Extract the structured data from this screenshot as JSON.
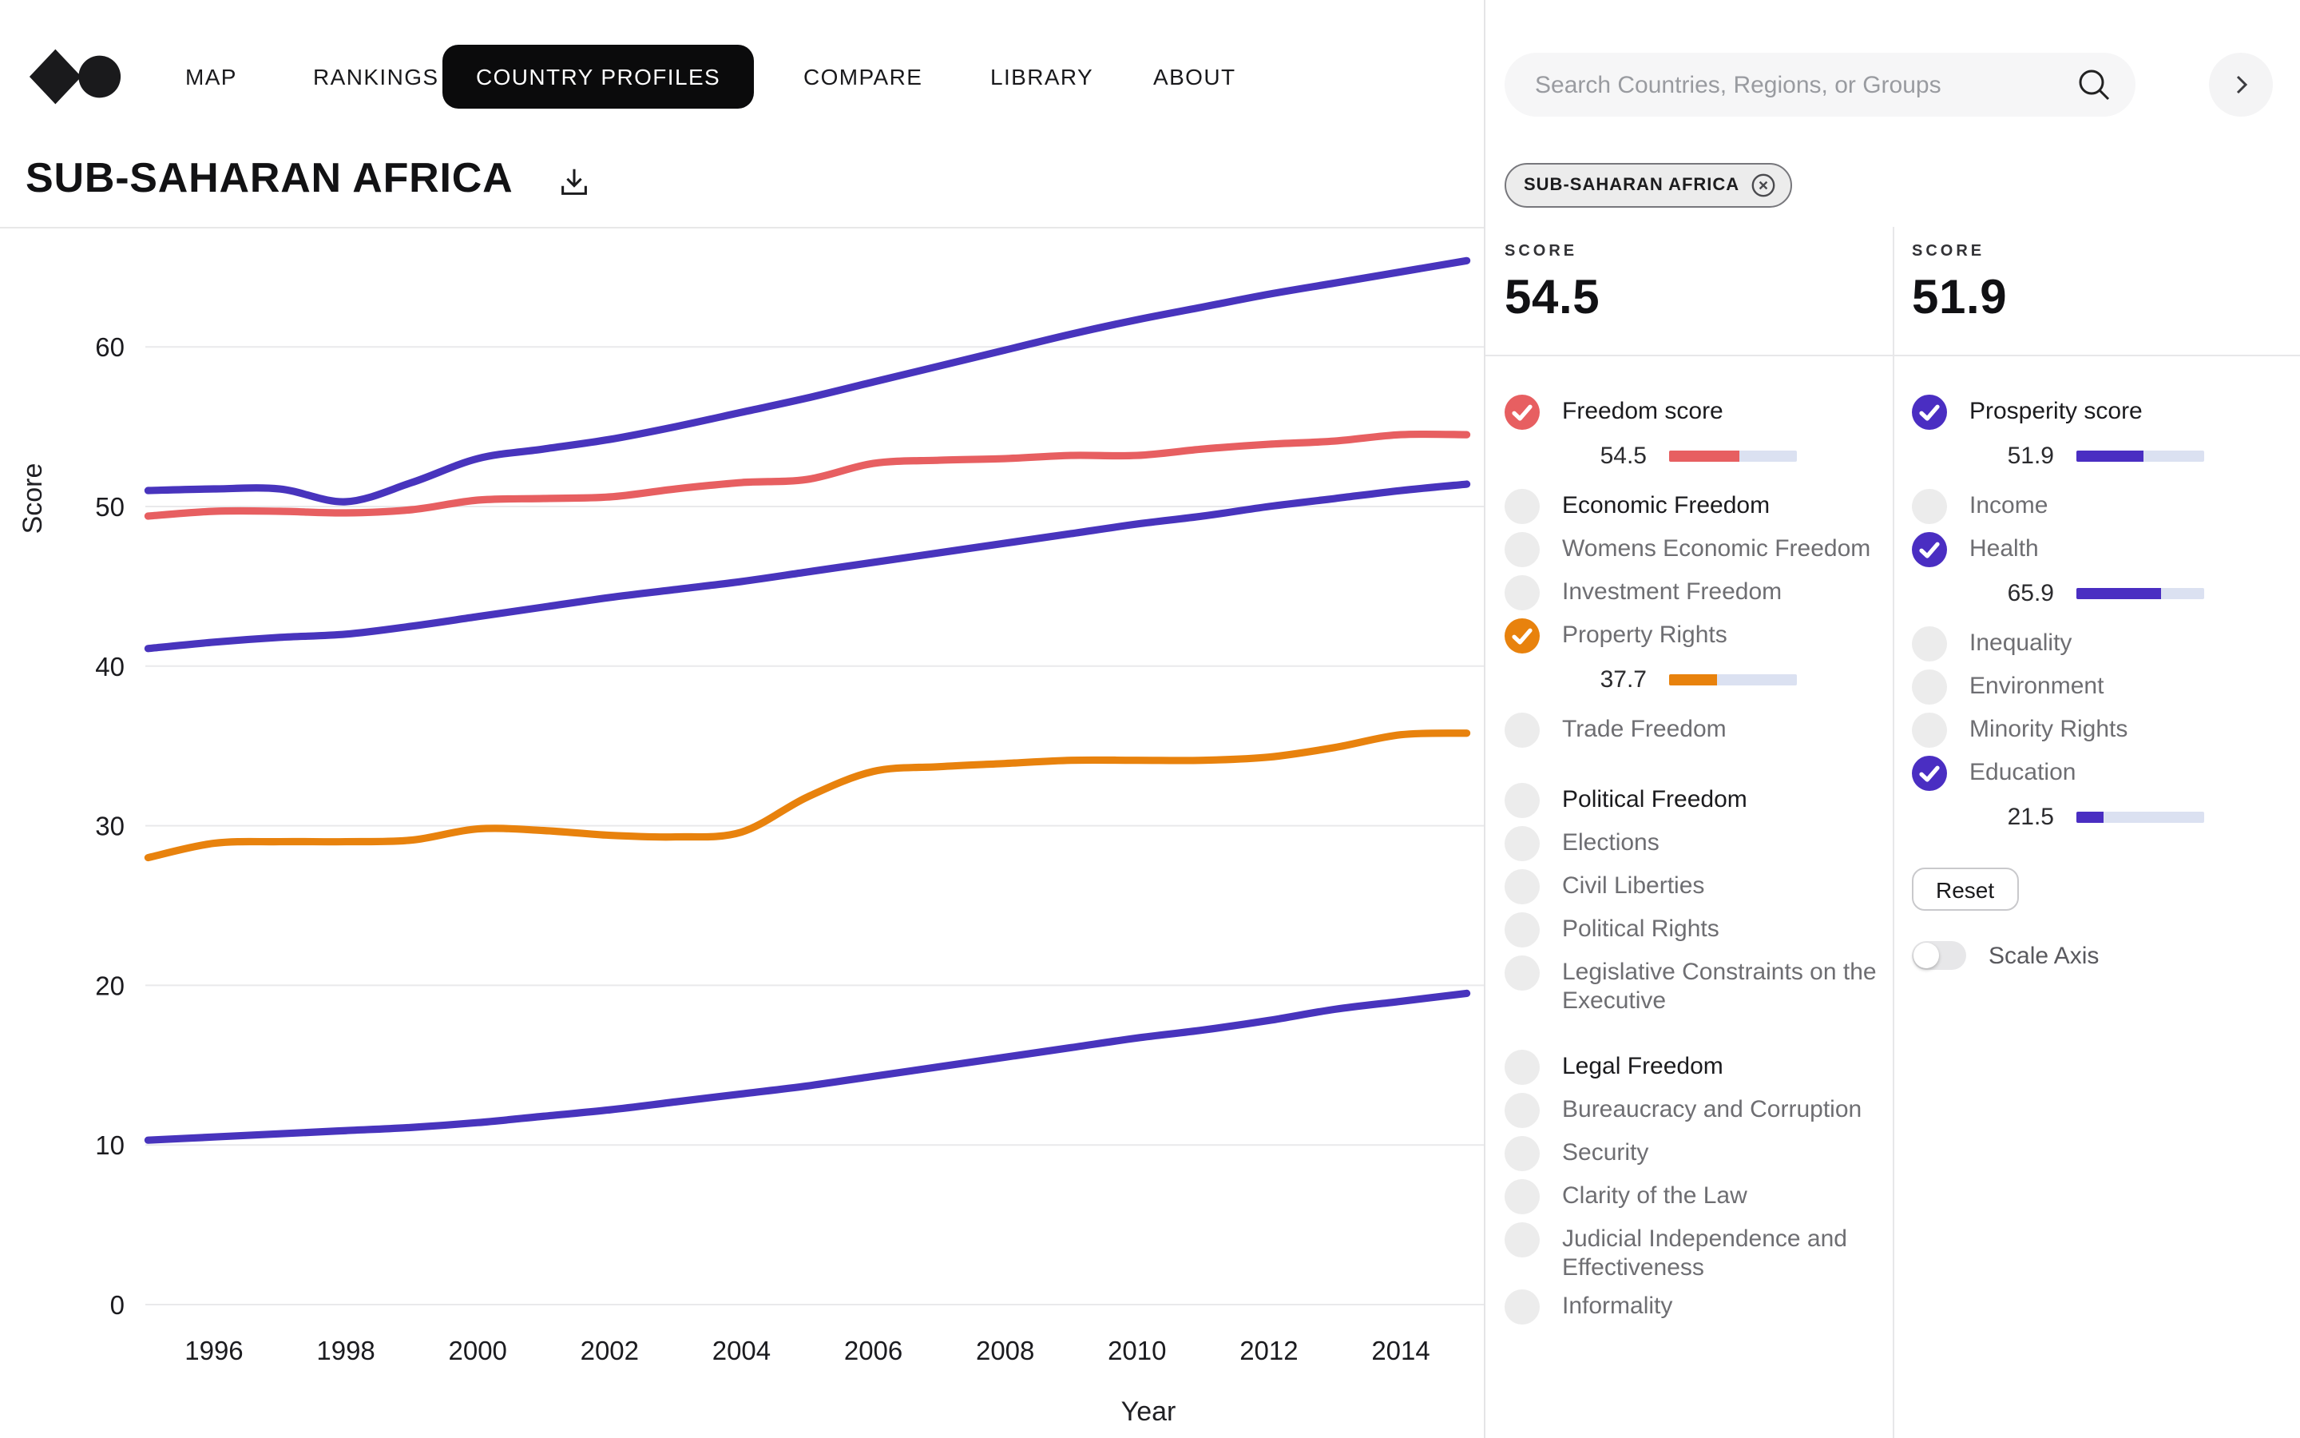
{
  "nav": {
    "items": [
      {
        "label": "MAP",
        "active": false
      },
      {
        "label": "RANKINGS",
        "active": false
      },
      {
        "label": "COUNTRY PROFILES",
        "active": true
      },
      {
        "label": "COMPARE",
        "active": false
      },
      {
        "label": "LIBRARY",
        "active": false
      },
      {
        "label": "ABOUT",
        "active": false
      }
    ]
  },
  "header": {
    "title": "SUB-SAHARAN AFRICA"
  },
  "search": {
    "placeholder": "Search Countries, Regions, or Groups"
  },
  "selection_tag": {
    "label": "SUB-SAHARAN AFRICA"
  },
  "score_summary": [
    {
      "label": "SCORE",
      "value": "54.5"
    },
    {
      "label": "SCORE",
      "value": "51.9"
    }
  ],
  "colors": {
    "red": "#e75f61",
    "orange": "#e8820d",
    "purple": "#4a2ec2",
    "line_purple": "#4834bd",
    "bar_track": "#dbe1f1",
    "unchecked": "#ececec",
    "nav_active_bg": "#0b0b0c",
    "grid": "#e9e9eb"
  },
  "freedom_panel": {
    "items": [
      {
        "label": "Freedom score",
        "checked": true,
        "color": "#e75f61",
        "value": 54.5,
        "emphasis": true
      },
      {
        "label": "Economic Freedom",
        "checked": false,
        "emphasis": true
      },
      {
        "label": "Womens Economic Freedom",
        "checked": false
      },
      {
        "label": "Investment Freedom",
        "checked": false
      },
      {
        "label": "Property Rights",
        "checked": true,
        "color": "#e8820d",
        "value": 37.7
      },
      {
        "label": "Trade Freedom",
        "checked": false
      },
      {
        "label": "Political Freedom",
        "checked": false,
        "emphasis": true,
        "gap_before": true
      },
      {
        "label": "Elections",
        "checked": false
      },
      {
        "label": "Civil Liberties",
        "checked": false
      },
      {
        "label": "Political Rights",
        "checked": false
      },
      {
        "label": "Legislative Constraints on the Executive",
        "checked": false
      },
      {
        "label": "Legal Freedom",
        "checked": false,
        "emphasis": true,
        "gap_before": true
      },
      {
        "label": "Bureaucracy and Corruption",
        "checked": false
      },
      {
        "label": "Security",
        "checked": false
      },
      {
        "label": "Clarity of the Law",
        "checked": false
      },
      {
        "label": "Judicial Independence and Effectiveness",
        "checked": false
      },
      {
        "label": "Informality",
        "checked": false
      }
    ]
  },
  "prosperity_panel": {
    "items": [
      {
        "label": "Prosperity score",
        "checked": true,
        "color": "#4a2ec2",
        "value": 51.9,
        "emphasis": true
      },
      {
        "label": "Income",
        "checked": false
      },
      {
        "label": "Health",
        "checked": true,
        "color": "#4a2ec2",
        "value": 65.9
      },
      {
        "label": "Inequality",
        "checked": false
      },
      {
        "label": "Environment",
        "checked": false
      },
      {
        "label": "Minority Rights",
        "checked": false
      },
      {
        "label": "Education",
        "checked": true,
        "color": "#4a2ec2",
        "value": 21.5
      }
    ],
    "reset_label": "Reset",
    "scale_axis_label": "Scale Axis",
    "toggle_on": false
  },
  "chart_data": {
    "type": "line",
    "xlabel": "Year",
    "ylabel": "Score",
    "x_ticks": [
      1996,
      1998,
      2000,
      2002,
      2004,
      2006,
      2008,
      2010,
      2012,
      2014
    ],
    "y_ticks": [
      0,
      10,
      20,
      30,
      40,
      50,
      60
    ],
    "ylim": [
      0,
      66
    ],
    "x_visible_range": [
      1995,
      2015.4
    ],
    "grid": true,
    "legend": "none",
    "x": [
      1995,
      1996,
      1997,
      1998,
      1999,
      2000,
      2001,
      2002,
      2003,
      2004,
      2005,
      2006,
      2007,
      2008,
      2009,
      2010,
      2011,
      2012,
      2013,
      2014,
      2015
    ],
    "series": [
      {
        "name": "Health",
        "color": "#4834bd",
        "values": [
          51.0,
          51.1,
          51.1,
          50.3,
          51.5,
          53.0,
          53.6,
          54.2,
          55.0,
          55.9,
          56.8,
          57.8,
          58.8,
          59.8,
          60.8,
          61.7,
          62.5,
          63.3,
          64.0,
          64.7,
          65.4
        ]
      },
      {
        "name": "Freedom score",
        "color": "#e75f61",
        "values": [
          49.4,
          49.7,
          49.7,
          49.6,
          49.8,
          50.4,
          50.5,
          50.6,
          51.1,
          51.5,
          51.7,
          52.7,
          52.9,
          53.0,
          53.2,
          53.2,
          53.6,
          53.9,
          54.1,
          54.5,
          54.5
        ]
      },
      {
        "name": "Prosperity score",
        "color": "#4834bd",
        "values": [
          41.1,
          41.5,
          41.8,
          42.0,
          42.5,
          43.1,
          43.7,
          44.3,
          44.8,
          45.3,
          45.9,
          46.5,
          47.1,
          47.7,
          48.3,
          48.9,
          49.4,
          50.0,
          50.5,
          51.0,
          51.4
        ]
      },
      {
        "name": "Property Rights",
        "color": "#e8820d",
        "values": [
          28.0,
          28.9,
          29.0,
          29.0,
          29.1,
          29.8,
          29.7,
          29.4,
          29.3,
          29.6,
          31.8,
          33.4,
          33.7,
          33.9,
          34.1,
          34.1,
          34.1,
          34.3,
          34.9,
          35.7,
          35.8
        ]
      },
      {
        "name": "Education",
        "color": "#4834bd",
        "values": [
          10.3,
          10.5,
          10.7,
          10.9,
          11.1,
          11.4,
          11.8,
          12.2,
          12.7,
          13.2,
          13.7,
          14.3,
          14.9,
          15.5,
          16.1,
          16.7,
          17.2,
          17.8,
          18.5,
          19.0,
          19.5
        ]
      }
    ]
  }
}
